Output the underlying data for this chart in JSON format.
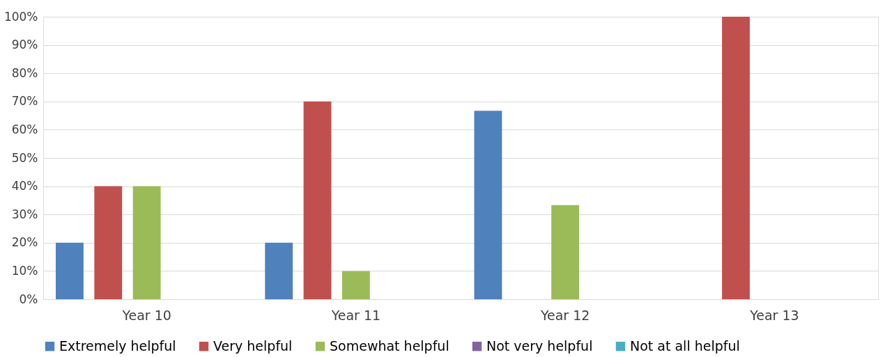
{
  "chart_data": {
    "type": "bar",
    "categories": [
      "Year 10",
      "Year 11",
      "Year 12",
      "Year 13"
    ],
    "series": [
      {
        "name": "Extremely helpful",
        "color": "#4f81bd",
        "values": [
          20,
          20,
          66.7,
          0
        ]
      },
      {
        "name": "Very helpful",
        "color": "#c0504d",
        "values": [
          40,
          70,
          0,
          100
        ]
      },
      {
        "name": "Somewhat helpful",
        "color": "#9bbb59",
        "values": [
          40,
          10,
          33.3,
          0
        ]
      },
      {
        "name": "Not very helpful",
        "color": "#8064a2",
        "values": [
          0,
          0,
          0,
          0
        ]
      },
      {
        "name": "Not at all helpful",
        "color": "#4bacc6",
        "values": [
          0,
          0,
          0,
          0
        ]
      }
    ],
    "ylim": [
      0,
      100
    ],
    "yticks": [
      {
        "value": 0,
        "label": "0%"
      },
      {
        "value": 10,
        "label": "10%"
      },
      {
        "value": 20,
        "label": "20%"
      },
      {
        "value": 30,
        "label": "30%"
      },
      {
        "value": 40,
        "label": "40%"
      },
      {
        "value": 50,
        "label": "50%"
      },
      {
        "value": 60,
        "label": "60%"
      },
      {
        "value": 70,
        "label": "70%"
      },
      {
        "value": 80,
        "label": "80%"
      },
      {
        "value": 90,
        "label": "90%"
      },
      {
        "value": 100,
        "label": "100%"
      }
    ],
    "grid": "y",
    "legend": "bottom"
  }
}
